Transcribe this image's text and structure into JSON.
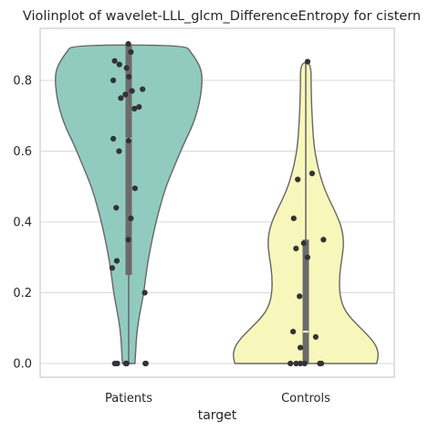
{
  "chart_data": {
    "type": "violin",
    "title": "Violinplot of wavelet-LLL_glcm_DifferenceEntropy for cistern",
    "xlabel": "target",
    "ylabel": "",
    "categories": [
      "Patients",
      "Controls"
    ],
    "ylim": [
      -0.04,
      0.94
    ],
    "yticks": [
      0.0,
      0.2,
      0.4,
      0.6,
      0.8
    ],
    "ytick_labels": [
      "0.0",
      "0.2",
      "0.4",
      "0.6",
      "0.8"
    ],
    "grid": "horizontal",
    "colors": {
      "Patients": "#91cbc0",
      "Controls": "#f8f7bb",
      "outline": "#666666",
      "box": "#6b6b6b",
      "points": "#333333",
      "grid": "#d8d8d8"
    },
    "violins": [
      {
        "name": "Patients",
        "range": [
          0.0,
          0.9
        ],
        "median": 0.635,
        "q1": 0.25,
        "q3": 0.9,
        "profile": [
          [
            0.0,
            0.07
          ],
          [
            0.04,
            0.08
          ],
          [
            0.08,
            0.09
          ],
          [
            0.12,
            0.11
          ],
          [
            0.16,
            0.14
          ],
          [
            0.2,
            0.17
          ],
          [
            0.26,
            0.2
          ],
          [
            0.32,
            0.24
          ],
          [
            0.38,
            0.29
          ],
          [
            0.44,
            0.35
          ],
          [
            0.5,
            0.42
          ],
          [
            0.56,
            0.52
          ],
          [
            0.62,
            0.62
          ],
          [
            0.66,
            0.7
          ],
          [
            0.7,
            0.76
          ],
          [
            0.74,
            0.8
          ],
          [
            0.77,
            0.82
          ],
          [
            0.8,
            0.83
          ],
          [
            0.83,
            0.82
          ],
          [
            0.86,
            0.76
          ],
          [
            0.88,
            0.7
          ],
          [
            0.9,
            0.64
          ]
        ],
        "points": [
          0.903,
          0.88,
          0.855,
          0.845,
          0.835,
          0.81,
          0.8,
          0.775,
          0.77,
          0.76,
          0.75,
          0.725,
          0.72,
          0.635,
          0.63,
          0.6,
          0.495,
          0.44,
          0.41,
          0.35,
          0.29,
          0.27,
          0.2,
          0.0,
          0.0,
          0.0,
          0.0,
          0.0,
          0.0
        ]
      },
      {
        "name": "Controls",
        "range": [
          0.0,
          0.853
        ],
        "median": 0.09,
        "q1": 0.0,
        "q3": 0.35,
        "profile": [
          [
            0.0,
            0.8
          ],
          [
            0.02,
            0.82
          ],
          [
            0.04,
            0.81
          ],
          [
            0.06,
            0.77
          ],
          [
            0.08,
            0.7
          ],
          [
            0.1,
            0.62
          ],
          [
            0.13,
            0.5
          ],
          [
            0.16,
            0.42
          ],
          [
            0.2,
            0.38
          ],
          [
            0.25,
            0.38
          ],
          [
            0.3,
            0.41
          ],
          [
            0.34,
            0.43
          ],
          [
            0.38,
            0.41
          ],
          [
            0.42,
            0.35
          ],
          [
            0.46,
            0.27
          ],
          [
            0.5,
            0.2
          ],
          [
            0.56,
            0.13
          ],
          [
            0.62,
            0.09
          ],
          [
            0.7,
            0.07
          ],
          [
            0.78,
            0.06
          ],
          [
            0.85,
            0.06
          ]
        ],
        "points": [
          0.853,
          0.537,
          0.52,
          0.41,
          0.35,
          0.34,
          0.325,
          0.3,
          0.19,
          0.09,
          0.075,
          0.045,
          0.0,
          0.0,
          0.0,
          0.0,
          0.0,
          0.0
        ]
      }
    ]
  }
}
